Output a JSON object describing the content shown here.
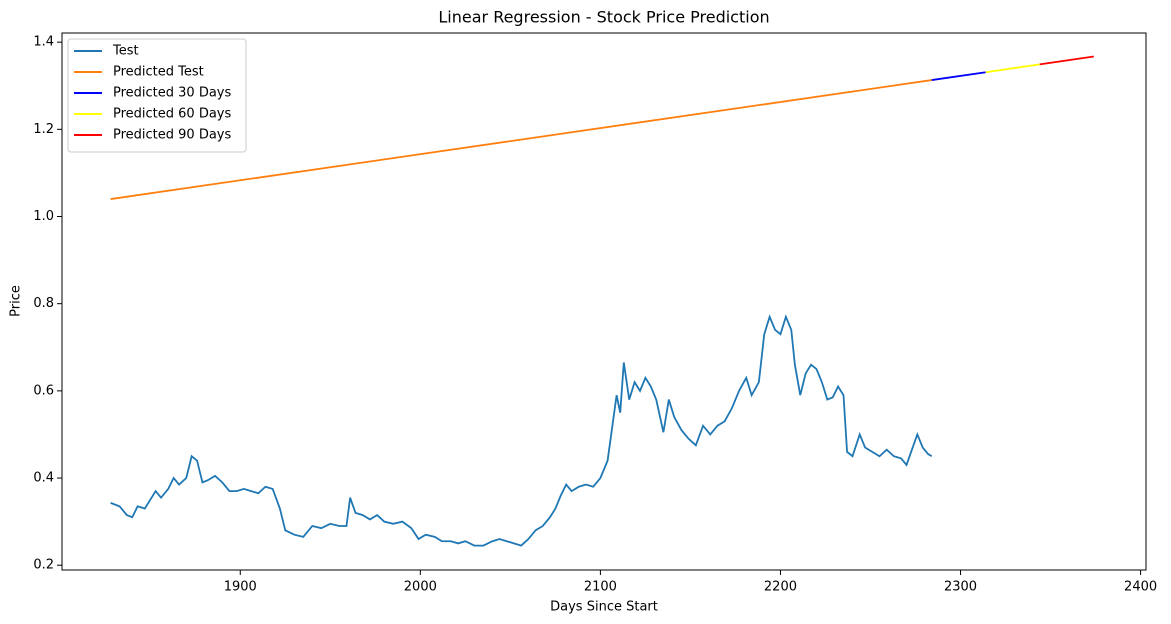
{
  "chart_data": {
    "type": "line",
    "title": "Linear Regression - Stock Price Prediction",
    "x_label": "Days Since Start",
    "y_label": "Price",
    "xlim": [
      1801,
      2403
    ],
    "ylim": [
      0.189,
      1.421
    ],
    "xticks": [
      1900,
      2000,
      2100,
      2200,
      2300,
      2400
    ],
    "yticks": [
      0.2,
      0.4,
      0.6,
      0.8,
      {
        "value": 1,
        "label": "1.0"
      },
      1.2,
      1.4
    ],
    "legend": "upper-left",
    "grid": false,
    "series": [
      {
        "name": "Test",
        "color": "#1f77b4",
        "x": [
          1828,
          1833,
          1837,
          1840,
          1843,
          1847,
          1850,
          1853,
          1856,
          1860,
          1863,
          1866,
          1870,
          1873,
          1876,
          1879,
          1882,
          1886,
          1890,
          1894,
          1898,
          1902,
          1906,
          1910,
          1914,
          1918,
          1922,
          1925,
          1930,
          1935,
          1940,
          1945,
          1950,
          1955,
          1959,
          1961,
          1964,
          1968,
          1972,
          1976,
          1980,
          1985,
          1990,
          1995,
          1999,
          2003,
          2008,
          2012,
          2017,
          2021,
          2025,
          2030,
          2035,
          2040,
          2044,
          2048,
          2052,
          2056,
          2060,
          2064,
          2068,
          2072,
          2075,
          2078,
          2081,
          2084,
          2088,
          2092,
          2096,
          2100,
          2104,
          2107,
          2109,
          2111,
          2113,
          2116,
          2119,
          2122,
          2125,
          2128,
          2131,
          2135,
          2138,
          2141,
          2145,
          2149,
          2153,
          2157,
          2161,
          2165,
          2169,
          2173,
          2177,
          2181,
          2184,
          2188,
          2191,
          2194,
          2197,
          2200,
          2203,
          2206,
          2208,
          2211,
          2214,
          2217,
          2220,
          2223,
          2226,
          2229,
          2232,
          2235,
          2237,
          2240,
          2244,
          2247,
          2251,
          2255,
          2259,
          2263,
          2267,
          2270,
          2273,
          2276,
          2279,
          2282,
          2284
        ],
        "values": [
          0.343,
          0.335,
          0.315,
          0.31,
          0.335,
          0.33,
          0.35,
          0.37,
          0.355,
          0.375,
          0.4,
          0.385,
          0.4,
          0.45,
          0.44,
          0.39,
          0.395,
          0.405,
          0.39,
          0.37,
          0.37,
          0.375,
          0.37,
          0.365,
          0.38,
          0.375,
          0.33,
          0.28,
          0.27,
          0.265,
          0.29,
          0.285,
          0.295,
          0.29,
          0.29,
          0.355,
          0.32,
          0.315,
          0.305,
          0.315,
          0.3,
          0.295,
          0.3,
          0.285,
          0.26,
          0.27,
          0.265,
          0.255,
          0.255,
          0.25,
          0.255,
          0.245,
          0.245,
          0.255,
          0.26,
          0.255,
          0.25,
          0.245,
          0.26,
          0.28,
          0.29,
          0.31,
          0.33,
          0.36,
          0.385,
          0.37,
          0.38,
          0.385,
          0.38,
          0.4,
          0.44,
          0.53,
          0.59,
          0.55,
          0.665,
          0.58,
          0.62,
          0.6,
          0.63,
          0.61,
          0.58,
          0.505,
          0.58,
          0.54,
          0.51,
          0.49,
          0.475,
          0.52,
          0.5,
          0.52,
          0.53,
          0.56,
          0.6,
          0.63,
          0.59,
          0.62,
          0.73,
          0.77,
          0.74,
          0.73,
          0.77,
          0.74,
          0.66,
          0.59,
          0.64,
          0.66,
          0.65,
          0.62,
          0.58,
          0.585,
          0.61,
          0.59,
          0.46,
          0.45,
          0.5,
          0.47,
          0.46,
          0.45,
          0.465,
          0.45,
          0.445,
          0.43,
          0.465,
          0.5,
          0.47,
          0.455,
          0.45
        ]
      },
      {
        "name": "Predicted Test",
        "color": "#ff7f0e",
        "x": [
          1828,
          2284
        ],
        "values": [
          1.04,
          1.313
        ]
      },
      {
        "name": "Predicted 30 Days",
        "color": "#0000ff",
        "x": [
          2284,
          2314
        ],
        "values": [
          1.313,
          1.331
        ]
      },
      {
        "name": "Predicted 60 Days",
        "color": "#ffff00",
        "x": [
          2314,
          2344
        ],
        "values": [
          1.331,
          1.349
        ]
      },
      {
        "name": "Predicted 90 Days",
        "color": "#ff0000",
        "x": [
          2344,
          2374
        ],
        "values": [
          1.349,
          1.367
        ]
      }
    ]
  }
}
